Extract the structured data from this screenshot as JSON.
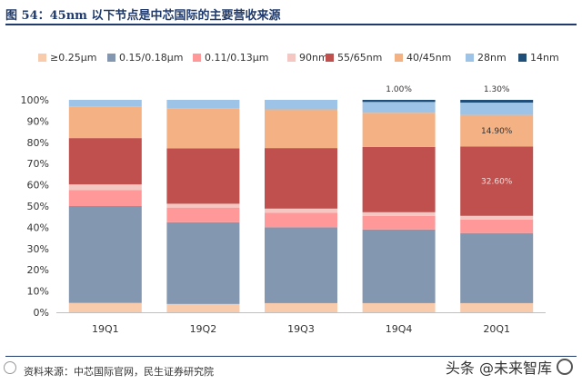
{
  "title": "图 54：45nm 以下节点是中芯国际的主要营收来源",
  "source": "资料来源：中芯国际官网，民生证券研究院",
  "watermark": "头条 @未来智库",
  "chart_data": {
    "type": "bar",
    "stacked": true,
    "categories": [
      "19Q1",
      "19Q2",
      "19Q3",
      "19Q4",
      "20Q1"
    ],
    "ylim": [
      0,
      100
    ],
    "yticks": [
      "0%",
      "10%",
      "20%",
      "30%",
      "40%",
      "50%",
      "60%",
      "70%",
      "80%",
      "90%",
      "100%"
    ],
    "legend_position": "top",
    "series": [
      {
        "name": "≥0.25μm",
        "color": "#f8cbad",
        "values": [
          4.4,
          3.9,
          4.3,
          4.3,
          4.3
        ]
      },
      {
        "name": "0.15/0.18μm",
        "color": "#8497b0",
        "values": [
          45.6,
          38.5,
          35.7,
          34.7,
          33.0
        ]
      },
      {
        "name": "0.11/0.13μm",
        "color": "#ff9999",
        "values": [
          7.6,
          6.9,
          6.9,
          6.4,
          6.4
        ]
      },
      {
        "name": "90nm",
        "color": "#f4c7c3",
        "values": [
          2.6,
          1.8,
          1.9,
          1.7,
          1.7
        ]
      },
      {
        "name": "55/65nm",
        "color": "#c0504d",
        "values": [
          21.8,
          26.1,
          28.5,
          30.7,
          32.6
        ]
      },
      {
        "name": "40/45nm",
        "color": "#f4b183",
        "values": [
          14.9,
          18.9,
          18.2,
          16.1,
          14.9
        ]
      },
      {
        "name": "28nm",
        "color": "#9dc3e6",
        "values": [
          3.1,
          3.9,
          4.5,
          5.1,
          5.8
        ]
      },
      {
        "name": "14nm",
        "color": "#1f4e79",
        "values": [
          0,
          0,
          0,
          1.0,
          1.3
        ]
      }
    ],
    "annotations": [
      {
        "text": "1.00%",
        "category": "19Q4",
        "position": "above"
      },
      {
        "text": "1.30%",
        "category": "20Q1",
        "position": "above"
      },
      {
        "text": "14.90%",
        "category": "20Q1",
        "series": "40/45nm"
      },
      {
        "text": "32.60%",
        "category": "20Q1",
        "series": "55/65nm"
      }
    ]
  }
}
